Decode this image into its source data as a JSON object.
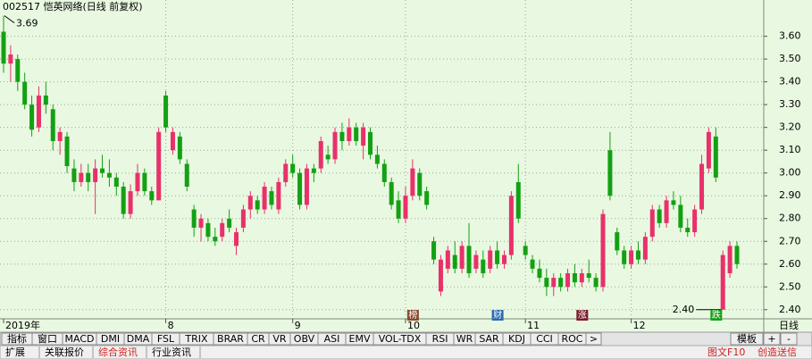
{
  "chart_data": {
    "type": "candlestick",
    "title": "002517 恺英网络(日线 前复权)",
    "up_color": "#e8316a",
    "down_color": "#14a014",
    "ylim": [
      2.36,
      3.72
    ],
    "yticks": [
      {
        "value": 2.4,
        "label": "2.40"
      },
      {
        "value": 2.5,
        "label": "2.50"
      },
      {
        "value": 2.6,
        "label": "2.60"
      },
      {
        "value": 2.7,
        "label": "2.70"
      },
      {
        "value": 2.8,
        "label": "2.80"
      },
      {
        "value": 2.9,
        "label": "2.90"
      },
      {
        "value": 3.0,
        "label": "3.00"
      },
      {
        "value": 3.1,
        "label": "3.10"
      },
      {
        "value": 3.2,
        "label": "3.20"
      },
      {
        "value": 3.3,
        "label": "3.30"
      },
      {
        "value": 3.4,
        "label": "3.40"
      },
      {
        "value": 3.5,
        "label": "3.50"
      },
      {
        "value": 3.6,
        "label": "3.60"
      }
    ],
    "grid": true,
    "ohlc": [
      [
        3.62,
        3.69,
        3.44,
        3.48
      ],
      [
        3.48,
        3.56,
        3.4,
        3.52
      ],
      [
        3.5,
        3.52,
        3.36,
        3.4
      ],
      [
        3.4,
        3.44,
        3.28,
        3.3
      ],
      [
        3.3,
        3.34,
        3.16,
        3.19
      ],
      [
        3.2,
        3.38,
        3.18,
        3.34
      ],
      [
        3.34,
        3.4,
        3.26,
        3.3
      ],
      [
        3.28,
        3.3,
        3.1,
        3.14
      ],
      [
        3.14,
        3.2,
        3.08,
        3.18
      ],
      [
        3.16,
        3.18,
        3.0,
        3.03
      ],
      [
        3.02,
        3.06,
        2.92,
        2.96
      ],
      [
        2.96,
        3.04,
        2.94,
        3.0
      ],
      [
        3.0,
        3.04,
        2.92,
        2.96
      ],
      [
        2.96,
        3.06,
        2.82,
        3.02
      ],
      [
        3.02,
        3.08,
        2.98,
        3.0
      ],
      [
        3.0,
        3.06,
        2.94,
        2.98
      ],
      [
        2.98,
        3.0,
        2.9,
        2.94
      ],
      [
        2.94,
        2.96,
        2.8,
        2.82
      ],
      [
        2.82,
        2.95,
        2.8,
        2.92
      ],
      [
        2.92,
        3.04,
        2.9,
        3.0
      ],
      [
        3.0,
        3.02,
        2.9,
        2.92
      ],
      [
        2.92,
        2.94,
        2.86,
        2.88
      ],
      [
        2.88,
        3.2,
        2.88,
        3.18
      ],
      [
        3.34,
        3.36,
        3.18,
        3.2
      ],
      [
        3.1,
        3.2,
        3.08,
        3.18
      ],
      [
        3.16,
        3.18,
        3.04,
        3.06
      ],
      [
        3.04,
        3.06,
        2.92,
        2.94
      ],
      [
        2.84,
        2.86,
        2.72,
        2.76
      ],
      [
        2.76,
        2.82,
        2.7,
        2.8
      ],
      [
        2.78,
        2.8,
        2.7,
        2.72
      ],
      [
        2.72,
        2.76,
        2.68,
        2.7
      ],
      [
        2.72,
        2.8,
        2.7,
        2.78
      ],
      [
        2.8,
        2.84,
        2.74,
        2.76
      ],
      [
        2.68,
        2.76,
        2.64,
        2.74
      ],
      [
        2.76,
        2.86,
        2.74,
        2.84
      ],
      [
        2.84,
        2.92,
        2.8,
        2.9
      ],
      [
        2.88,
        2.9,
        2.82,
        2.84
      ],
      [
        2.84,
        2.96,
        2.82,
        2.94
      ],
      [
        2.92,
        2.94,
        2.84,
        2.86
      ],
      [
        2.84,
        2.98,
        2.82,
        2.96
      ],
      [
        2.96,
        3.06,
        2.94,
        3.04
      ],
      [
        3.04,
        3.08,
        2.98,
        3.0
      ],
      [
        3.0,
        3.02,
        2.84,
        2.86
      ],
      [
        2.86,
        3.04,
        2.84,
        3.02
      ],
      [
        3.02,
        3.04,
        2.96,
        3.0
      ],
      [
        3.02,
        3.16,
        3.0,
        3.14
      ],
      [
        3.08,
        3.12,
        3.04,
        3.06
      ],
      [
        3.06,
        3.2,
        3.04,
        3.18
      ],
      [
        3.18,
        3.22,
        3.1,
        3.14
      ],
      [
        3.14,
        3.24,
        3.12,
        3.2
      ],
      [
        3.2,
        3.22,
        3.12,
        3.14
      ],
      [
        3.12,
        3.22,
        3.06,
        3.2
      ],
      [
        3.18,
        3.2,
        3.06,
        3.08
      ],
      [
        3.08,
        3.12,
        3.02,
        3.04
      ],
      [
        3.04,
        3.06,
        2.94,
        2.96
      ],
      [
        2.96,
        2.98,
        2.84,
        2.86
      ],
      [
        2.88,
        2.92,
        2.78,
        2.8
      ],
      [
        2.8,
        2.94,
        2.78,
        2.9
      ],
      [
        2.9,
        3.06,
        2.88,
        3.02
      ],
      [
        3.0,
        3.02,
        2.88,
        2.9
      ],
      [
        2.92,
        2.94,
        2.84,
        2.86
      ],
      [
        2.7,
        2.72,
        2.6,
        2.62
      ],
      [
        2.48,
        2.64,
        2.46,
        2.62
      ],
      [
        2.58,
        2.68,
        2.56,
        2.66
      ],
      [
        2.64,
        2.7,
        2.56,
        2.58
      ],
      [
        2.58,
        2.7,
        2.56,
        2.68
      ],
      [
        2.68,
        2.78,
        2.54,
        2.56
      ],
      [
        2.58,
        2.66,
        2.56,
        2.64
      ],
      [
        2.62,
        2.66,
        2.54,
        2.56
      ],
      [
        2.58,
        2.68,
        2.56,
        2.66
      ],
      [
        2.66,
        2.7,
        2.58,
        2.6
      ],
      [
        2.6,
        2.66,
        2.58,
        2.64
      ],
      [
        2.64,
        2.92,
        2.62,
        2.9
      ],
      [
        2.96,
        3.04,
        2.78,
        2.8
      ],
      [
        2.68,
        2.7,
        2.62,
        2.64
      ],
      [
        2.62,
        2.64,
        2.56,
        2.58
      ],
      [
        2.58,
        2.62,
        2.52,
        2.54
      ],
      [
        2.54,
        2.58,
        2.46,
        2.5
      ],
      [
        2.5,
        2.56,
        2.46,
        2.54
      ],
      [
        2.54,
        2.56,
        2.48,
        2.5
      ],
      [
        2.5,
        2.58,
        2.48,
        2.56
      ],
      [
        2.56,
        2.6,
        2.5,
        2.52
      ],
      [
        2.52,
        2.58,
        2.5,
        2.56
      ],
      [
        2.56,
        2.62,
        2.52,
        2.54
      ],
      [
        2.54,
        2.56,
        2.48,
        2.5
      ],
      [
        2.5,
        2.84,
        2.48,
        2.82
      ],
      [
        3.1,
        3.18,
        2.88,
        2.9
      ],
      [
        2.74,
        2.76,
        2.64,
        2.66
      ],
      [
        2.66,
        2.68,
        2.58,
        2.6
      ],
      [
        2.6,
        2.68,
        2.58,
        2.66
      ],
      [
        2.66,
        2.7,
        2.6,
        2.62
      ],
      [
        2.62,
        2.74,
        2.6,
        2.72
      ],
      [
        2.72,
        2.86,
        2.7,
        2.84
      ],
      [
        2.84,
        2.86,
        2.76,
        2.78
      ],
      [
        2.78,
        2.9,
        2.76,
        2.88
      ],
      [
        2.88,
        2.92,
        2.84,
        2.86
      ],
      [
        2.86,
        2.9,
        2.74,
        2.76
      ],
      [
        2.76,
        2.8,
        2.72,
        2.74
      ],
      [
        2.74,
        2.86,
        2.72,
        2.84
      ],
      [
        2.84,
        3.08,
        2.82,
        3.04
      ],
      [
        3.02,
        3.2,
        3.0,
        3.18
      ],
      [
        3.16,
        3.2,
        2.96,
        2.98
      ],
      [
        2.4,
        2.66,
        2.4,
        2.64
      ],
      [
        2.56,
        2.7,
        2.54,
        2.68
      ],
      [
        2.68,
        2.7,
        2.58,
        2.6
      ]
    ],
    "month_labels": [
      {
        "index": 0,
        "label": "2019年"
      },
      {
        "index": 23,
        "label": "8"
      },
      {
        "index": 41,
        "label": "9"
      },
      {
        "index": 57,
        "label": "10"
      },
      {
        "index": 74,
        "label": "11"
      },
      {
        "index": 89,
        "label": "12"
      }
    ],
    "event_markers": [
      {
        "index": 58,
        "label": "榜",
        "color": "#8b4a2a"
      },
      {
        "index": 70,
        "label": "财",
        "color": "#2a6ab0"
      },
      {
        "index": 82,
        "label": "涨",
        "color": "#7a1a2a"
      },
      {
        "index": 101,
        "label": "跌",
        "color": "#14a014"
      }
    ],
    "annotations": [
      {
        "index": 0,
        "value": 3.69,
        "label": "3.69"
      },
      {
        "index": 102,
        "value": 2.4,
        "label": "2.40"
      }
    ],
    "period_label": "日线",
    "indicator_tabs": [
      "指标",
      "窗口",
      "MACD",
      "DMI",
      "DMA",
      "FSL",
      "TRIX",
      "BRAR",
      "CR",
      "VR",
      "OBV",
      "ASI",
      "EMV",
      "VOL-TDX",
      "RSI",
      "WR",
      "SAR",
      "KDJ",
      "CCI",
      "ROC",
      ">"
    ],
    "right_tabs": [
      "模板",
      "+",
      "-"
    ],
    "info_tabs": [
      "扩展",
      "关联报价",
      "综合资讯",
      "行业资讯"
    ],
    "info_right": [
      "图文F10",
      "创造送信"
    ]
  }
}
